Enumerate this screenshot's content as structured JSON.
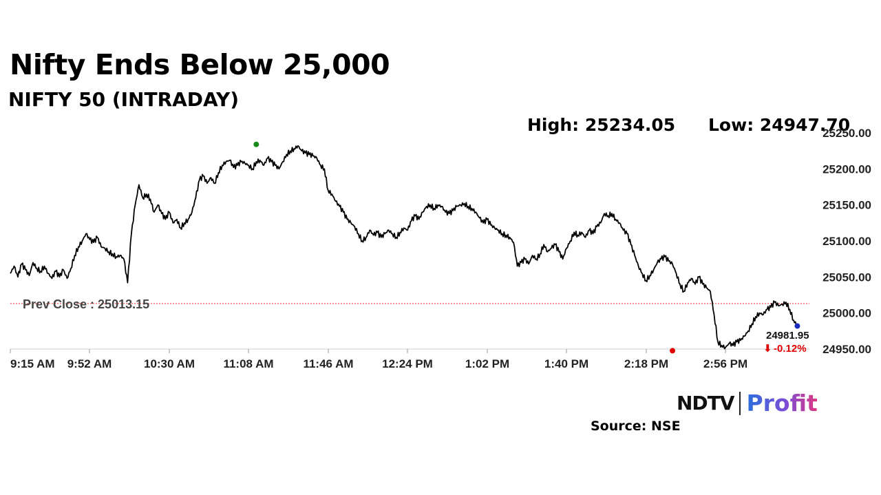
{
  "header": {
    "title": "Nifty Ends Below 25,000",
    "subtitle": "NIFTY 50 (INTRADAY)",
    "high_label": "High: 25234.05",
    "low_label": "Low: 24947.70"
  },
  "footer": {
    "brand_left": "NDTV",
    "brand_right": "Profit",
    "source": "Source: NSE"
  },
  "colors": {
    "line": "#000000",
    "prev_close_line": "#e03a3a",
    "high_marker": "#1a8a1a",
    "low_marker": "#e00000",
    "last_marker": "#1a2bbf",
    "change_text": "#e00000"
  },
  "chart_data": {
    "type": "line",
    "x_ticks": [
      "9:15 AM",
      "9:52 AM",
      "10:30 AM",
      "11:08 AM",
      "11:46 AM",
      "12:24 PM",
      "1:02 PM",
      "1:40 PM",
      "2:18 PM",
      "2:56 PM"
    ],
    "y_ticks": [
      "25250.00",
      "25200.00",
      "25150.00",
      "25100.00",
      "25050.00",
      "25000.00",
      "24950.00"
    ],
    "ylim": [
      24950,
      25250
    ],
    "x_range_minutes": [
      0,
      378
    ],
    "prev_close": 25013.15,
    "prev_close_label": "Prev Close : 25013.15",
    "last_value": 24981.95,
    "last_value_label": "24981.95",
    "change_label": "-0.12%",
    "change_arrow": "⬇",
    "high": {
      "minute": 130,
      "value": 25234.05
    },
    "low": {
      "minute": 350,
      "value": 24947.7
    },
    "series": [
      {
        "points": [
          [
            0,
            25055
          ],
          [
            2,
            25065
          ],
          [
            4,
            25050
          ],
          [
            6,
            25068
          ],
          [
            8,
            25060
          ],
          [
            10,
            25052
          ],
          [
            12,
            25070
          ],
          [
            14,
            25062
          ],
          [
            16,
            25058
          ],
          [
            18,
            25065
          ],
          [
            20,
            25055
          ],
          [
            22,
            25048
          ],
          [
            24,
            25058
          ],
          [
            26,
            25050
          ],
          [
            28,
            25060
          ],
          [
            30,
            25048
          ],
          [
            32,
            25062
          ],
          [
            34,
            25080
          ],
          [
            36,
            25092
          ],
          [
            38,
            25100
          ],
          [
            40,
            25110
          ],
          [
            42,
            25102
          ],
          [
            44,
            25098
          ],
          [
            46,
            25105
          ],
          [
            48,
            25092
          ],
          [
            50,
            25090
          ],
          [
            52,
            25085
          ],
          [
            54,
            25082
          ],
          [
            56,
            25078
          ],
          [
            58,
            25080
          ],
          [
            60,
            25075
          ],
          [
            62,
            25042
          ],
          [
            64,
            25110
          ],
          [
            66,
            25150
          ],
          [
            68,
            25178
          ],
          [
            70,
            25160
          ],
          [
            72,
            25165
          ],
          [
            74,
            25158
          ],
          [
            76,
            25140
          ],
          [
            78,
            25150
          ],
          [
            80,
            25138
          ],
          [
            82,
            25130
          ],
          [
            84,
            25140
          ],
          [
            86,
            25125
          ],
          [
            88,
            25130
          ],
          [
            90,
            25118
          ],
          [
            92,
            25125
          ],
          [
            94,
            25130
          ],
          [
            96,
            25140
          ],
          [
            98,
            25160
          ],
          [
            100,
            25185
          ],
          [
            102,
            25190
          ],
          [
            104,
            25180
          ],
          [
            106,
            25188
          ],
          [
            108,
            25180
          ],
          [
            110,
            25195
          ],
          [
            112,
            25205
          ],
          [
            114,
            25210
          ],
          [
            116,
            25212
          ],
          [
            118,
            25202
          ],
          [
            120,
            25205
          ],
          [
            122,
            25210
          ],
          [
            124,
            25208
          ],
          [
            126,
            25205
          ],
          [
            128,
            25200
          ],
          [
            130,
            25210
          ],
          [
            132,
            25212
          ],
          [
            134,
            25205
          ],
          [
            136,
            25215
          ],
          [
            138,
            25210
          ],
          [
            140,
            25205
          ],
          [
            142,
            25200
          ],
          [
            144,
            25210
          ],
          [
            146,
            25220
          ],
          [
            148,
            25225
          ],
          [
            150,
            25228
          ],
          [
            152,
            25232
          ],
          [
            154,
            25225
          ],
          [
            156,
            25222
          ],
          [
            158,
            25220
          ],
          [
            160,
            25218
          ],
          [
            162,
            25215
          ],
          [
            164,
            25205
          ],
          [
            166,
            25200
          ],
          [
            168,
            25170
          ],
          [
            170,
            25165
          ],
          [
            172,
            25155
          ],
          [
            174,
            25148
          ],
          [
            176,
            25140
          ],
          [
            178,
            25130
          ],
          [
            180,
            25125
          ],
          [
            182,
            25120
          ],
          [
            184,
            25110
          ],
          [
            186,
            25100
          ],
          [
            188,
            25105
          ],
          [
            190,
            25115
          ],
          [
            192,
            25108
          ],
          [
            194,
            25112
          ],
          [
            196,
            25105
          ],
          [
            198,
            25110
          ],
          [
            200,
            25115
          ],
          [
            202,
            25110
          ],
          [
            204,
            25105
          ],
          [
            206,
            25112
          ],
          [
            208,
            25118
          ],
          [
            210,
            25115
          ],
          [
            212,
            25128
          ],
          [
            214,
            25135
          ],
          [
            216,
            25130
          ],
          [
            218,
            25140
          ],
          [
            220,
            25148
          ],
          [
            222,
            25150
          ],
          [
            224,
            25145
          ],
          [
            226,
            25150
          ],
          [
            228,
            25148
          ],
          [
            230,
            25140
          ],
          [
            232,
            25138
          ],
          [
            234,
            25142
          ],
          [
            236,
            25148
          ],
          [
            238,
            25150
          ],
          [
            240,
            25152
          ],
          [
            242,
            25148
          ],
          [
            244,
            25145
          ],
          [
            246,
            25140
          ],
          [
            248,
            25132
          ],
          [
            250,
            25125
          ],
          [
            252,
            25130
          ],
          [
            254,
            25122
          ],
          [
            256,
            25118
          ],
          [
            258,
            25115
          ],
          [
            260,
            25110
          ],
          [
            262,
            25108
          ],
          [
            264,
            25105
          ],
          [
            266,
            25098
          ],
          [
            268,
            25065
          ],
          [
            270,
            25070
          ],
          [
            272,
            25075
          ],
          [
            274,
            25068
          ],
          [
            276,
            25080
          ],
          [
            278,
            25075
          ],
          [
            280,
            25082
          ],
          [
            282,
            25095
          ],
          [
            284,
            25085
          ],
          [
            286,
            25090
          ],
          [
            288,
            25095
          ],
          [
            290,
            25085
          ],
          [
            292,
            25075
          ],
          [
            294,
            25090
          ],
          [
            296,
            25100
          ],
          [
            298,
            25112
          ],
          [
            300,
            25108
          ],
          [
            302,
            25112
          ],
          [
            304,
            25105
          ],
          [
            306,
            25115
          ],
          [
            308,
            25110
          ],
          [
            310,
            25120
          ],
          [
            312,
            25125
          ],
          [
            314,
            25138
          ],
          [
            316,
            25135
          ],
          [
            318,
            25138
          ],
          [
            320,
            25130
          ],
          [
            322,
            25125
          ],
          [
            324,
            25115
          ],
          [
            326,
            25110
          ],
          [
            328,
            25095
          ],
          [
            330,
            25080
          ],
          [
            332,
            25065
          ],
          [
            334,
            25055
          ],
          [
            336,
            25045
          ],
          [
            338,
            25052
          ],
          [
            340,
            25060
          ],
          [
            342,
            25070
          ],
          [
            344,
            25075
          ],
          [
            346,
            25078
          ],
          [
            348,
            25072
          ],
          [
            350,
            25068
          ],
          [
            352,
            25055
          ],
          [
            354,
            25040
          ],
          [
            356,
            25030
          ],
          [
            358,
            25042
          ],
          [
            360,
            25048
          ],
          [
            362,
            25040
          ],
          [
            364,
            25050
          ],
          [
            366,
            25040
          ],
          [
            368,
            25035
          ],
          [
            370,
            25030
          ],
          [
            372,
            24998
          ],
          [
            374,
            24960
          ],
          [
            376,
            24955
          ],
          [
            378,
            24952
          ],
          [
            380,
            24958
          ],
          [
            382,
            24955
          ],
          [
            384,
            24960
          ],
          [
            386,
            24962
          ],
          [
            388,
            24968
          ],
          [
            390,
            24975
          ],
          [
            392,
            24985
          ],
          [
            394,
            24995
          ],
          [
            396,
            25000
          ],
          [
            398,
            24998
          ],
          [
            400,
            25005
          ],
          [
            402,
            25008
          ],
          [
            404,
            25015
          ],
          [
            406,
            25010
          ],
          [
            408,
            25012
          ],
          [
            410,
            25015
          ],
          [
            412,
            25005
          ],
          [
            414,
            24990
          ],
          [
            416,
            24982
          ]
        ]
      }
    ]
  }
}
